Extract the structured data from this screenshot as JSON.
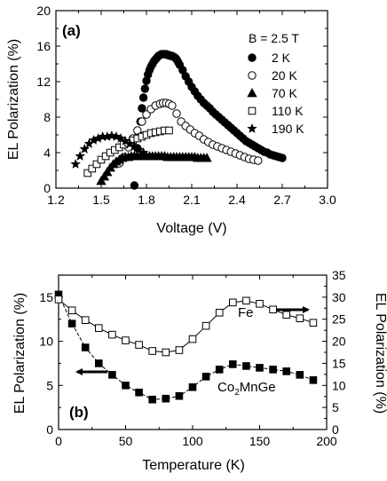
{
  "chart_data": [
    {
      "type": "scatter",
      "panel_label": "(a)",
      "legend_title": "B = 2.5 T",
      "legend_position": "top-right",
      "xlabel": "Voltage (V)",
      "ylabel": "EL Polarization (%)",
      "xlim": [
        1.2,
        3.0
      ],
      "ylim": [
        0,
        20
      ],
      "xticks": [
        "1.2",
        "1.5",
        "1.8",
        "2.1",
        "2.4",
        "2.7",
        "3.0"
      ],
      "yticks": [
        "0",
        "4",
        "8",
        "12",
        "16",
        "20"
      ],
      "series": [
        {
          "name": "2 K",
          "marker": "filled-circle",
          "x": [
            1.72,
            1.74,
            1.75,
            1.76,
            1.77,
            1.78,
            1.79,
            1.8,
            1.81,
            1.82,
            1.83,
            1.84,
            1.85,
            1.86,
            1.87,
            1.88,
            1.89,
            1.9,
            1.91,
            1.92,
            1.93,
            1.94,
            1.95,
            1.96,
            1.97,
            1.98,
            1.99,
            2.0,
            2.01,
            2.02,
            2.04,
            2.06,
            2.08,
            2.1,
            2.12,
            2.14,
            2.16,
            2.18,
            2.2,
            2.22,
            2.24,
            2.26,
            2.28,
            2.3,
            2.32,
            2.34,
            2.36,
            2.38,
            2.4,
            2.42,
            2.44,
            2.46,
            2.48,
            2.5,
            2.52,
            2.54,
            2.56,
            2.58,
            2.6,
            2.62,
            2.64,
            2.66,
            2.68,
            2.7
          ],
          "y": [
            0.3,
            4.5,
            6.0,
            7.5,
            9.0,
            10.2,
            11.2,
            12.1,
            12.8,
            13.3,
            13.7,
            14.0,
            14.3,
            14.5,
            14.7,
            14.9,
            15.0,
            15.1,
            15.1,
            15.1,
            15.1,
            15.0,
            15.0,
            14.9,
            14.9,
            14.8,
            14.7,
            14.5,
            14.2,
            13.9,
            13.3,
            12.6,
            12.0,
            11.4,
            10.9,
            10.4,
            10.0,
            9.6,
            9.3,
            9.0,
            8.6,
            8.3,
            8.0,
            7.7,
            7.4,
            7.1,
            6.8,
            6.5,
            6.2,
            5.9,
            5.6,
            5.3,
            5.1,
            4.9,
            4.7,
            4.5,
            4.3,
            4.1,
            4.0,
            3.8,
            3.7,
            3.6,
            3.5,
            3.4
          ]
        },
        {
          "name": "20 K",
          "marker": "open-circle",
          "x": [
            1.62,
            1.65,
            1.68,
            1.71,
            1.74,
            1.77,
            1.8,
            1.83,
            1.86,
            1.89,
            1.91,
            1.93,
            1.95,
            1.97,
            2.0,
            2.03,
            2.06,
            2.09,
            2.12,
            2.15,
            2.18,
            2.21,
            2.24,
            2.27,
            2.3,
            2.33,
            2.36,
            2.39,
            2.42,
            2.45,
            2.48,
            2.51,
            2.54
          ],
          "y": [
            2.8,
            3.5,
            4.6,
            5.6,
            6.5,
            7.5,
            8.3,
            8.9,
            9.3,
            9.5,
            9.6,
            9.6,
            9.5,
            9.3,
            8.4,
            7.5,
            7.0,
            6.6,
            6.2,
            5.9,
            5.5,
            5.2,
            4.9,
            4.7,
            4.5,
            4.3,
            4.1,
            3.9,
            3.7,
            3.5,
            3.3,
            3.2,
            3.1
          ]
        },
        {
          "name": "70 K",
          "marker": "filled-triangle",
          "x": [
            1.5,
            1.52,
            1.54,
            1.56,
            1.58,
            1.6,
            1.62,
            1.64,
            1.66,
            1.68,
            1.7,
            1.72,
            1.74,
            1.76,
            1.78,
            1.8,
            1.82,
            1.84,
            1.86,
            1.88,
            1.9,
            1.92,
            1.94,
            1.96,
            1.98,
            2.0,
            2.02,
            2.04,
            2.06,
            2.08,
            2.1,
            2.12,
            2.14,
            2.16,
            2.18,
            2.2
          ],
          "y": [
            0.8,
            1.3,
            1.8,
            2.3,
            2.7,
            3.0,
            3.2,
            3.4,
            3.5,
            3.5,
            3.6,
            3.6,
            3.6,
            3.6,
            3.6,
            3.6,
            3.6,
            3.6,
            3.6,
            3.6,
            3.6,
            3.6,
            3.5,
            3.5,
            3.5,
            3.5,
            3.5,
            3.5,
            3.5,
            3.5,
            3.5,
            3.5,
            3.4,
            3.4,
            3.4,
            3.4
          ]
        },
        {
          "name": "110 K",
          "marker": "open-square",
          "x": [
            1.41,
            1.44,
            1.47,
            1.5,
            1.53,
            1.56,
            1.59,
            1.62,
            1.65,
            1.68,
            1.71,
            1.74,
            1.77,
            1.8,
            1.83,
            1.86,
            1.89,
            1.92,
            1.95
          ],
          "y": [
            1.7,
            2.2,
            2.7,
            3.2,
            3.6,
            4.0,
            4.3,
            4.6,
            4.9,
            5.1,
            5.4,
            5.6,
            5.8,
            6.0,
            6.2,
            6.3,
            6.4,
            6.5,
            6.5
          ]
        },
        {
          "name": "190 K",
          "marker": "filled-star",
          "x": [
            1.33,
            1.36,
            1.39,
            1.42,
            1.45,
            1.48,
            1.51,
            1.54,
            1.57,
            1.6,
            1.63,
            1.66,
            1.69,
            1.72,
            1.75,
            1.78
          ],
          "y": [
            2.7,
            3.6,
            4.4,
            5.0,
            5.4,
            5.6,
            5.8,
            5.8,
            5.9,
            5.8,
            5.6,
            5.3,
            5.0,
            4.7,
            4.3,
            4.0
          ]
        }
      ]
    },
    {
      "type": "line",
      "panel_label": "(b)",
      "xlabel": "Temperature (K)",
      "ylabel": "EL Polarization (%)",
      "ylabel_right": "EL Polarization (%)",
      "xlim": [
        0,
        200
      ],
      "ylim": [
        0,
        17.5
      ],
      "ylim_right": [
        0,
        35
      ],
      "xticks": [
        "0",
        "50",
        "100",
        "150",
        "200"
      ],
      "yticks": [
        "0",
        "5",
        "10",
        "15"
      ],
      "yticks_right": [
        "0",
        "5",
        "10",
        "15",
        "20",
        "25",
        "30",
        "35"
      ],
      "series": [
        {
          "name": "Co2MnGe",
          "label_main": "Co",
          "label_sub": "2",
          "label_tail": "MnGe",
          "marker": "filled-square",
          "axis": "left",
          "arrow": "left",
          "x": [
            0,
            10,
            20,
            30,
            40,
            50,
            60,
            70,
            80,
            90,
            100,
            110,
            120,
            130,
            140,
            150,
            160,
            170,
            180,
            190
          ],
          "y": [
            15.3,
            12.0,
            9.3,
            7.5,
            6.2,
            5.0,
            4.2,
            3.4,
            3.5,
            3.8,
            4.8,
            6.0,
            6.8,
            7.4,
            7.2,
            7.0,
            6.8,
            6.6,
            6.2,
            5.6
          ]
        },
        {
          "name": "Fe",
          "label_main": "Fe",
          "label_sub": "",
          "label_tail": "",
          "marker": "open-square",
          "axis": "right",
          "arrow": "right",
          "x": [
            0,
            10,
            20,
            30,
            40,
            50,
            60,
            70,
            80,
            90,
            100,
            110,
            120,
            130,
            140,
            150,
            160,
            170,
            180,
            190
          ],
          "y": [
            29.5,
            27.0,
            24.8,
            23.0,
            21.5,
            20.2,
            19.2,
            17.8,
            17.5,
            18.0,
            20.5,
            23.5,
            26.5,
            28.8,
            29.2,
            28.5,
            27.2,
            26.0,
            25.2,
            24.2
          ]
        }
      ]
    }
  ]
}
